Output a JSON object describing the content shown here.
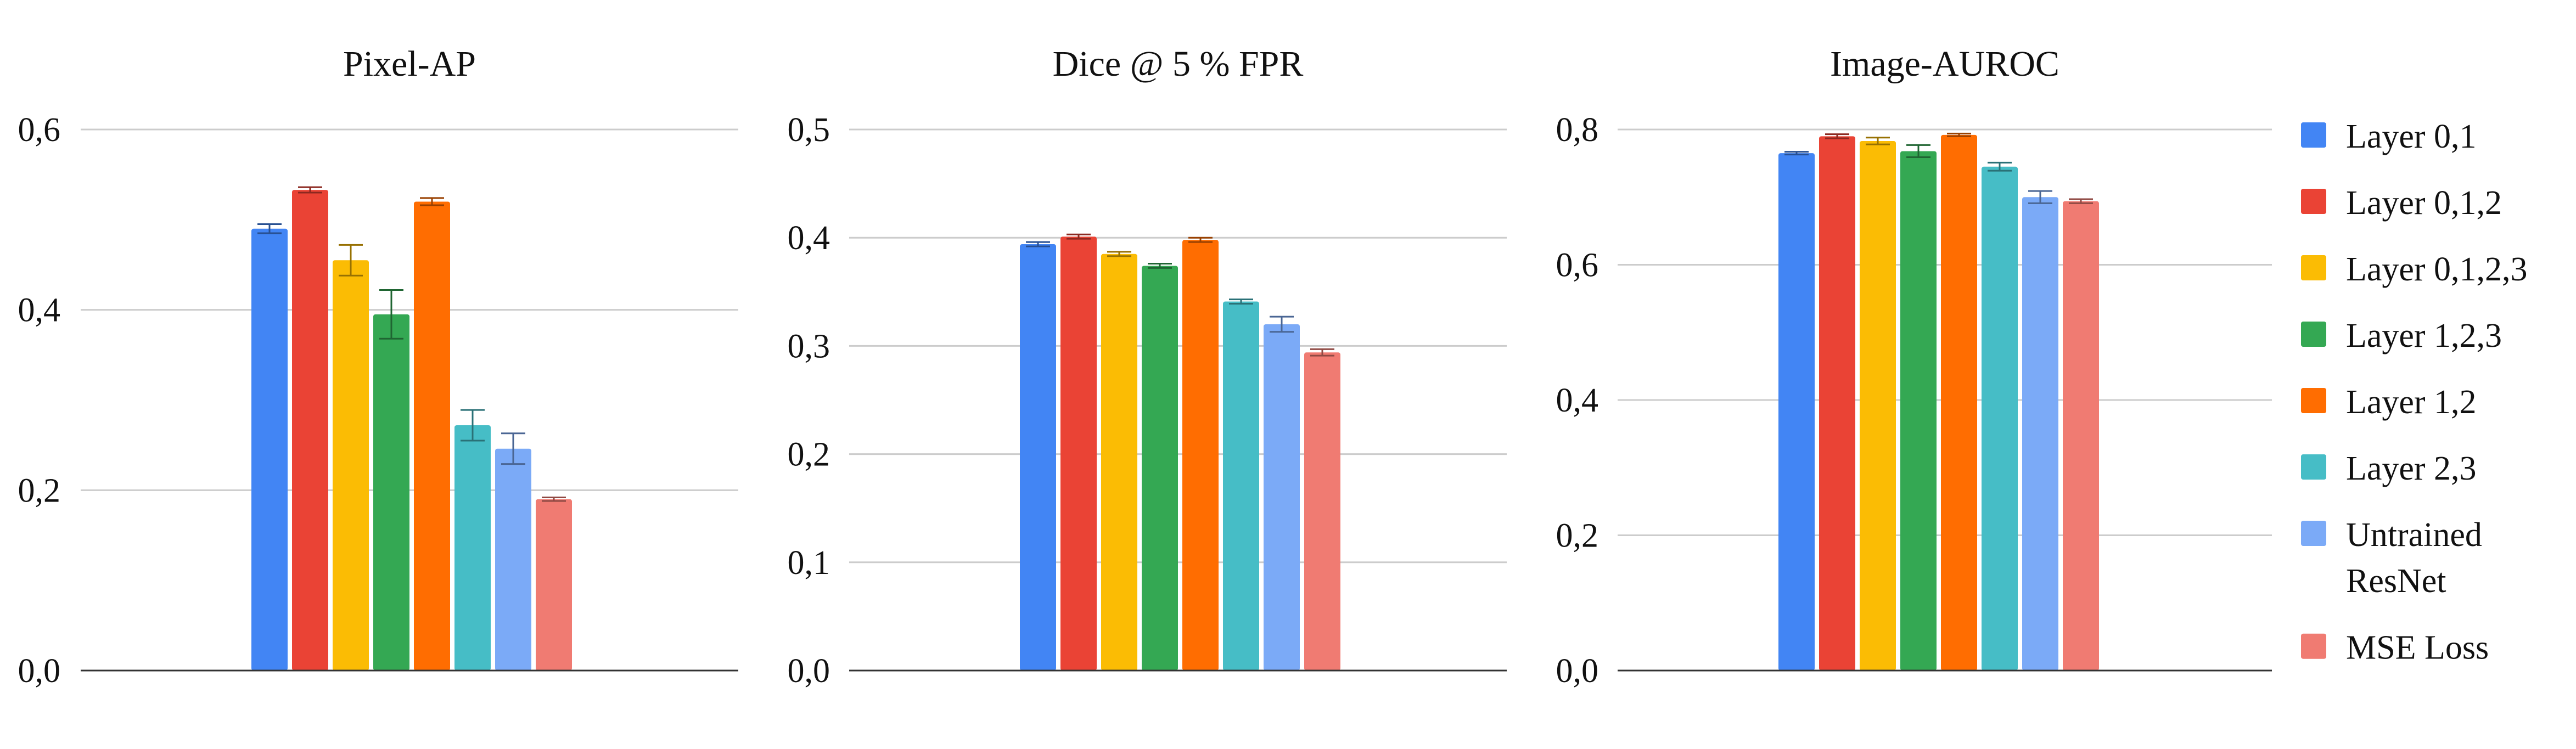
{
  "chart_data": [
    {
      "type": "bar",
      "title": "Pixel-AP",
      "xlabel": "",
      "ylabel": "",
      "ylim": [
        0,
        0.6
      ],
      "yticks": [
        "0,0",
        "0,2",
        "0,4",
        "0,6"
      ],
      "grid": true,
      "series": [
        {
          "name": "Layer 0,1",
          "value": 0.49,
          "error": 0.005
        },
        {
          "name": "Layer 0,1,2",
          "value": 0.533,
          "error": 0.003
        },
        {
          "name": "Layer 0,1,2,3",
          "value": 0.455,
          "error": 0.017
        },
        {
          "name": "Layer 1,2,3",
          "value": 0.395,
          "error": 0.027
        },
        {
          "name": "Layer 1,2",
          "value": 0.52,
          "error": 0.004
        },
        {
          "name": "Layer 2,3",
          "value": 0.272,
          "error": 0.017
        },
        {
          "name": "Untrained ResNet",
          "value": 0.246,
          "error": 0.017
        },
        {
          "name": "MSE Loss",
          "value": 0.19,
          "error": 0.002
        }
      ]
    },
    {
      "type": "bar",
      "title": "Dice @ 5 % FPR",
      "xlabel": "",
      "ylabel": "",
      "ylim": [
        0,
        0.5
      ],
      "yticks": [
        "0,0",
        "0,1",
        "0,2",
        "0,3",
        "0,4",
        "0,5"
      ],
      "grid": true,
      "series": [
        {
          "name": "Layer 0,1",
          "value": 0.394,
          "error": 0.002
        },
        {
          "name": "Layer 0,1,2",
          "value": 0.401,
          "error": 0.002
        },
        {
          "name": "Layer 0,1,2,3",
          "value": 0.385,
          "error": 0.002
        },
        {
          "name": "Layer 1,2,3",
          "value": 0.374,
          "error": 0.002
        },
        {
          "name": "Layer 1,2",
          "value": 0.398,
          "error": 0.002
        },
        {
          "name": "Layer 2,3",
          "value": 0.341,
          "error": 0.002
        },
        {
          "name": "Untrained ResNet",
          "value": 0.32,
          "error": 0.007
        },
        {
          "name": "MSE Loss",
          "value": 0.294,
          "error": 0.003
        }
      ]
    },
    {
      "type": "bar",
      "title": "Image-AUROC",
      "xlabel": "",
      "ylabel": "",
      "ylim": [
        0,
        0.8
      ],
      "yticks": [
        "0,0",
        "0,2",
        "0,4",
        "0,6",
        "0,8"
      ],
      "grid": true,
      "series": [
        {
          "name": "Layer 0,1",
          "value": 0.765,
          "error": 0.002
        },
        {
          "name": "Layer 0,1,2",
          "value": 0.79,
          "error": 0.003
        },
        {
          "name": "Layer 0,1,2,3",
          "value": 0.783,
          "error": 0.005
        },
        {
          "name": "Layer 1,2,3",
          "value": 0.768,
          "error": 0.009
        },
        {
          "name": "Layer 1,2",
          "value": 0.792,
          "error": 0.002
        },
        {
          "name": "Layer 2,3",
          "value": 0.745,
          "error": 0.006
        },
        {
          "name": "Untrained ResNet",
          "value": 0.7,
          "error": 0.009
        },
        {
          "name": "MSE Loss",
          "value": 0.694,
          "error": 0.003
        }
      ]
    }
  ],
  "legend": {
    "placement": "right",
    "items": [
      {
        "label": "Layer 0,1",
        "color": "#4285F4"
      },
      {
        "label": "Layer 0,1,2",
        "color": "#EA4335"
      },
      {
        "label": "Layer 0,1,2,3",
        "color": "#FBBC04"
      },
      {
        "label": "Layer 1,2,3",
        "color": "#34A853"
      },
      {
        "label": "Layer 1,2",
        "color": "#FF6D01"
      },
      {
        "label": "Layer 2,3",
        "color": "#46BDC6"
      },
      {
        "label": "Untrained ResNet",
        "color": "#7BAAF7"
      },
      {
        "label": "MSE Loss",
        "color": "#F07B72"
      }
    ]
  }
}
